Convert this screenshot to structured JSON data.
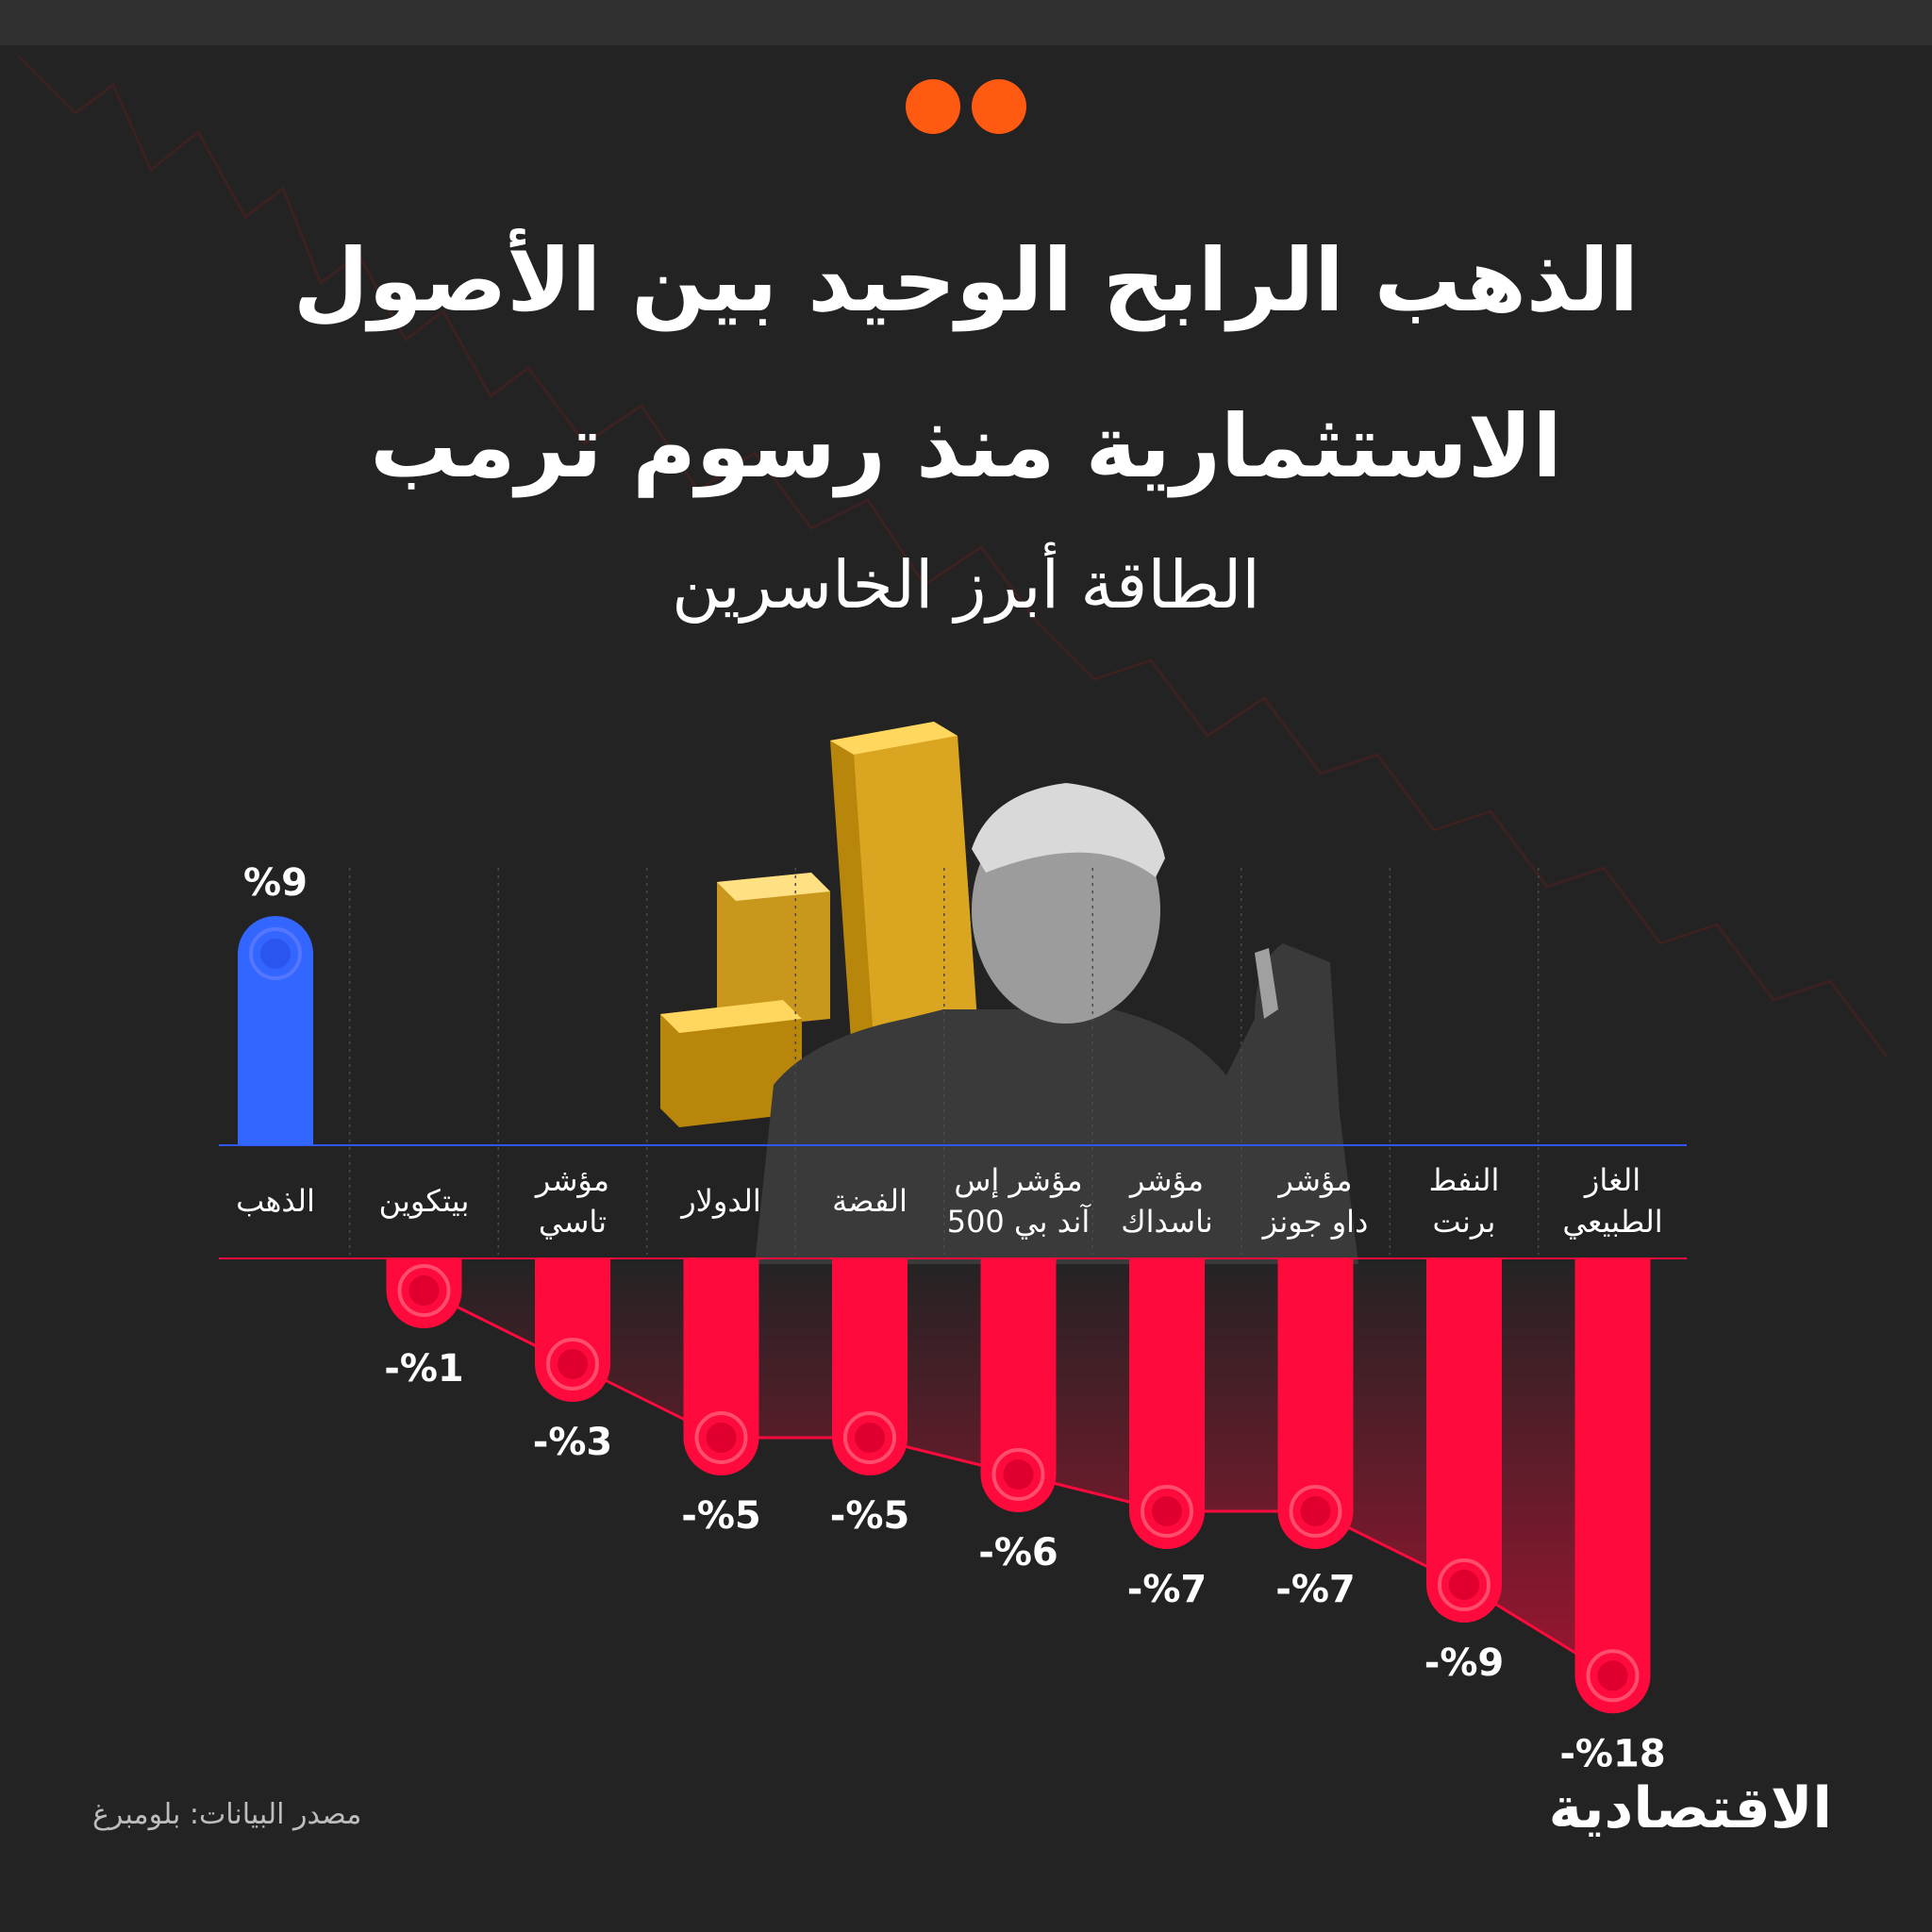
{
  "header": {
    "title_line1": "الذهب الرابح الوحيد بين الأصول",
    "title_line2": "الاستثمارية منذ رسوم ترمب",
    "subtitle": "الطاقة أبرز الخاسرين"
  },
  "colors": {
    "accent": "#ff5a12",
    "positive": "#3366ff",
    "negative": "#ff0a3c"
  },
  "chart_data": {
    "type": "bar",
    "categories": [
      [
        "الذهب"
      ],
      [
        "بيتكوين"
      ],
      [
        "مؤشر",
        "تاسي"
      ],
      [
        "الدولار"
      ],
      [
        "الفضة"
      ],
      [
        "مؤشر إس",
        "آند بي 500"
      ],
      [
        "مؤشر",
        "ناسداك"
      ],
      [
        "مؤشر",
        "داو جونز"
      ],
      [
        "النفط",
        "برنت"
      ],
      [
        "الغاز",
        "الطبيعي"
      ]
    ],
    "values": [
      9,
      -1,
      -3,
      -5,
      -5,
      -6,
      -7,
      -7,
      -9,
      -18
    ],
    "value_labels": [
      "%9",
      "-%1",
      "-%3",
      "-%5",
      "-%5",
      "-%6",
      "-%7",
      "-%7",
      "-%9",
      "-%18"
    ],
    "grid": false
  },
  "footer": {
    "source": "مصدر البيانات: بلومبرغ",
    "logo": "الاقتصادية"
  }
}
